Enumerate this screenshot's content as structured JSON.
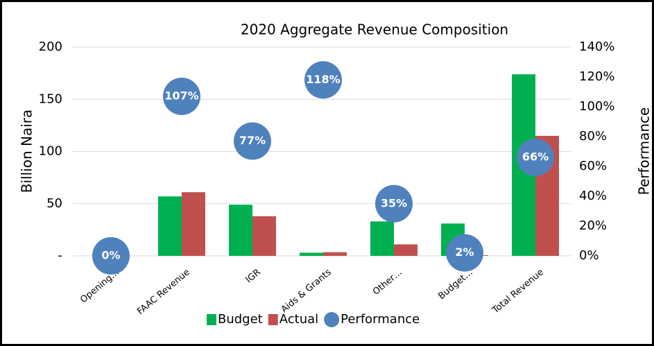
{
  "chart_data": {
    "type": "bar",
    "title": "2020 Aggregate Revenue Composition",
    "y_label": "Billion Naira",
    "y2_label": "Performance",
    "categories": [
      "Opening…",
      "FAAC Revenue",
      "IGR",
      "Aids & Grants",
      "Other…",
      "Budget…",
      "Total Revenue"
    ],
    "series": [
      {
        "name": "Budget",
        "color": "#00b050",
        "type": "bar",
        "values": [
          0,
          57,
          49,
          3,
          33,
          31,
          174
        ]
      },
      {
        "name": "Actual",
        "color": "#c0504d",
        "type": "bar",
        "values": [
          0,
          61,
          38,
          3.5,
          11,
          0.6,
          115
        ]
      },
      {
        "name": "Performance",
        "color": "#4f81bd",
        "type": "bubble",
        "axis": "y2",
        "values": [
          0,
          107,
          77,
          118,
          35,
          2,
          66
        ],
        "value_labels": [
          "0%",
          "107%",
          "77%",
          "118%",
          "35%",
          "2%",
          "66%"
        ]
      }
    ],
    "ylim": [
      0,
      200
    ],
    "yticks": [
      {
        "value": 0,
        "label": "-"
      },
      50,
      100,
      150,
      200
    ],
    "y2lim": [
      0,
      140
    ],
    "y2ticks": [
      {
        "value": 0,
        "label": "0%"
      },
      {
        "value": 20,
        "label": "20%"
      },
      {
        "value": 40,
        "label": "40%"
      },
      {
        "value": 60,
        "label": "60%"
      },
      {
        "value": 80,
        "label": "80%"
      },
      {
        "value": 100,
        "label": "100%"
      },
      {
        "value": 120,
        "label": "120%"
      },
      {
        "value": 140,
        "label": "140%"
      }
    ],
    "grid": true,
    "legend": "bottom"
  }
}
